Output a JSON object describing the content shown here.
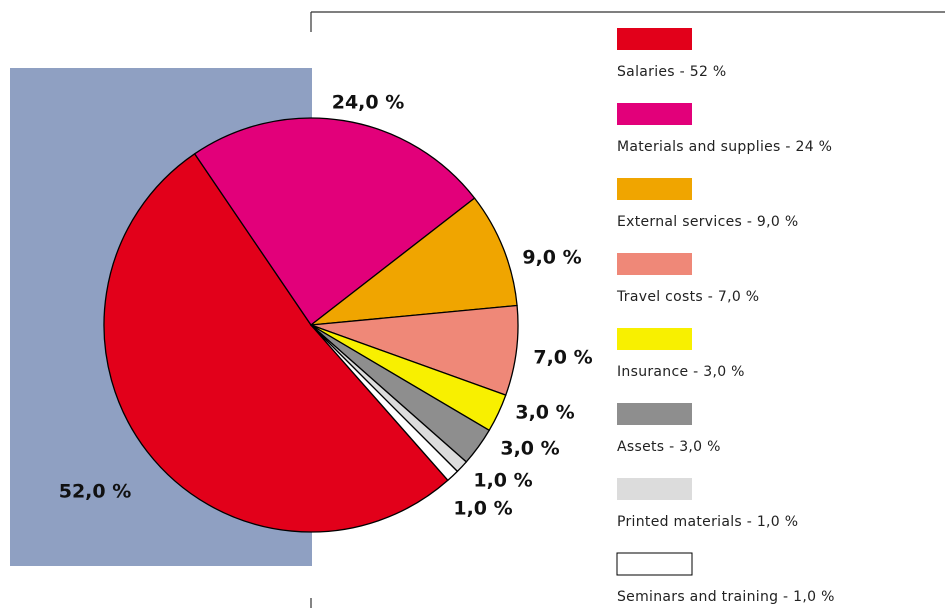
{
  "chart_data": {
    "type": "pie",
    "categories": [
      "Salaries - 52 %",
      "Materials and supplies - 24 %",
      "External services - 9,0 %",
      "Travel costs - 7,0 %",
      "Insurance - 3,0 %",
      "Assets - 3,0 %",
      "Printed materials - 1,0 %",
      "Seminars and training - 1,0 %"
    ],
    "values": [
      52,
      24,
      9,
      7,
      3,
      3,
      1,
      1
    ],
    "value_labels": [
      "52,0 %",
      "24,0 %",
      "9,0 %",
      "7,0 %",
      "3,0 %",
      "3,0 %",
      "1,0 %",
      "1,0 %"
    ],
    "colors": [
      "#e2001a",
      "#e2007a",
      "#f0a500",
      "#ef8878",
      "#f8f000",
      "#8e8e8e",
      "#dcdcdc",
      "#ffffff"
    ]
  }
}
